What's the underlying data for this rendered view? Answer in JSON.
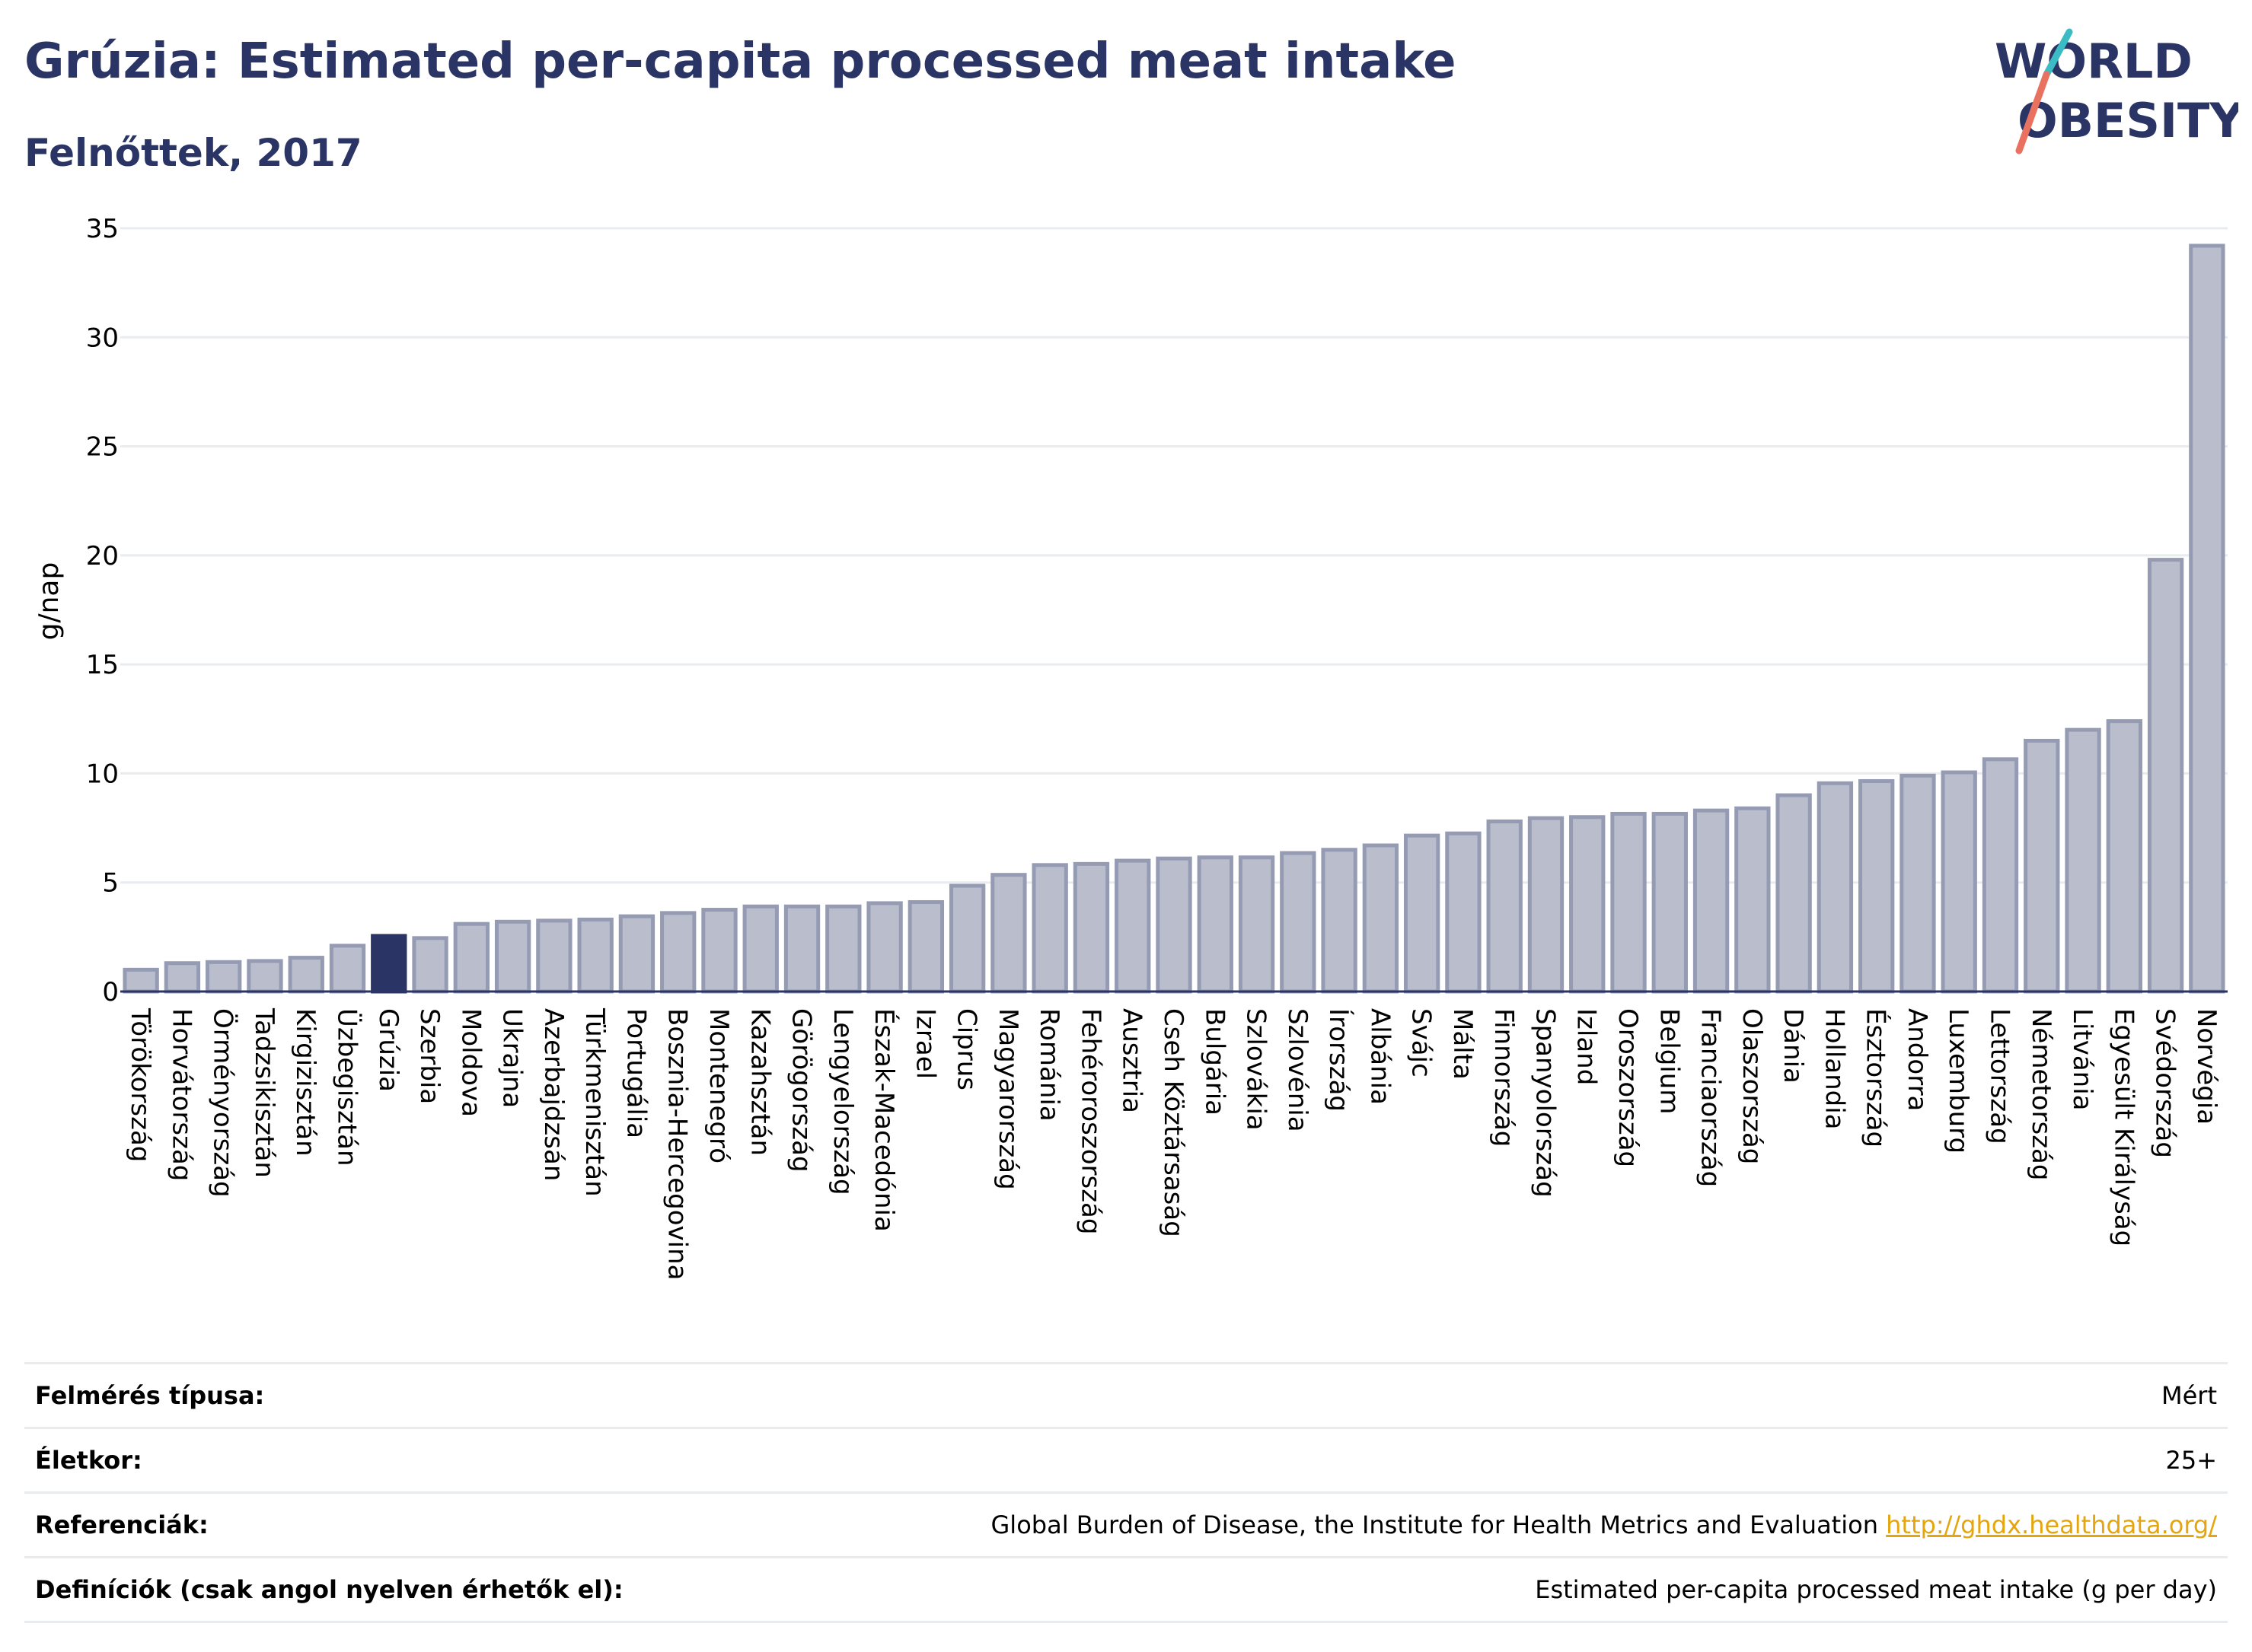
{
  "header": {
    "title": "Grúzia: Estimated per-capita processed meat intake",
    "subtitle": "Felnőttek, 2017"
  },
  "logo": {
    "line1": "WORLD",
    "line2": "OBESITY"
  },
  "colors": {
    "title": "#2a3565",
    "bar": "#b9bdcc",
    "bar_border": "#959bb3",
    "highlight": "#2a3565",
    "grid": "#e8ecef",
    "link": "#e5a60d",
    "logo_teal": "#3bbcc4",
    "logo_coral": "#e8715f"
  },
  "chart_data": {
    "type": "bar",
    "ylabel": "g/nap",
    "ylim": [
      0,
      35
    ],
    "yticks": [
      0,
      5,
      10,
      15,
      20,
      25,
      30,
      35
    ],
    "grid": true,
    "highlight": "Grúzia",
    "categories": [
      "Törökország",
      "Horvátország",
      "Örményország",
      "Tadzsikisztán",
      "Kirgizisztán",
      "Üzbegisztán",
      "Grúzia",
      "Szerbia",
      "Moldova",
      "Ukrajna",
      "Azerbajdzsán",
      "Türkmenisztán",
      "Portugália",
      "Bosznia-Hercegovina",
      "Montenegró",
      "Kazahsztán",
      "Görögország",
      "Lengyelország",
      "Észak-Macedónia",
      "Izrael",
      "Ciprus",
      "Magyarország",
      "Románia",
      "Fehéroroszország",
      "Ausztria",
      "Cseh Köztársaság",
      "Bulgária",
      "Szlovákia",
      "Szlovénia",
      "Írország",
      "Albánia",
      "Svájc",
      "Málta",
      "Finnország",
      "Spanyolország",
      "Izland",
      "Oroszország",
      "Belgium",
      "Franciaország",
      "Olaszország",
      "Dánia",
      "Hollandia",
      "Észtország",
      "Andorra",
      "Luxemburg",
      "Lettország",
      "Németország",
      "Litvánia",
      "Egyesült Királyság",
      "Svédország",
      "Norvégia"
    ],
    "values": [
      1.0,
      1.3,
      1.35,
      1.4,
      1.55,
      2.1,
      2.55,
      2.45,
      3.1,
      3.2,
      3.25,
      3.3,
      3.45,
      3.6,
      3.75,
      3.9,
      3.9,
      3.9,
      4.05,
      4.1,
      4.85,
      5.35,
      5.8,
      5.85,
      6.0,
      6.1,
      6.15,
      6.15,
      6.35,
      6.5,
      6.7,
      7.15,
      7.25,
      7.8,
      7.95,
      8.0,
      8.15,
      8.15,
      8.3,
      8.4,
      9.0,
      9.55,
      9.65,
      9.9,
      10.05,
      10.65,
      11.5,
      12.0,
      12.4,
      19.8,
      34.2
    ]
  },
  "info": [
    {
      "label": "Felmérés típusa:",
      "value": "Mért"
    },
    {
      "label": "Életkor:",
      "value": "25+"
    },
    {
      "label": "Referenciák:",
      "value": "Global Burden of Disease, the Institute for Health Metrics and Evaluation",
      "link": "http://ghdx.healthdata.org/"
    },
    {
      "label": "Definíciók (csak angol nyelven érhetők el):",
      "value": "Estimated per-capita processed meat intake (g per day)"
    }
  ]
}
